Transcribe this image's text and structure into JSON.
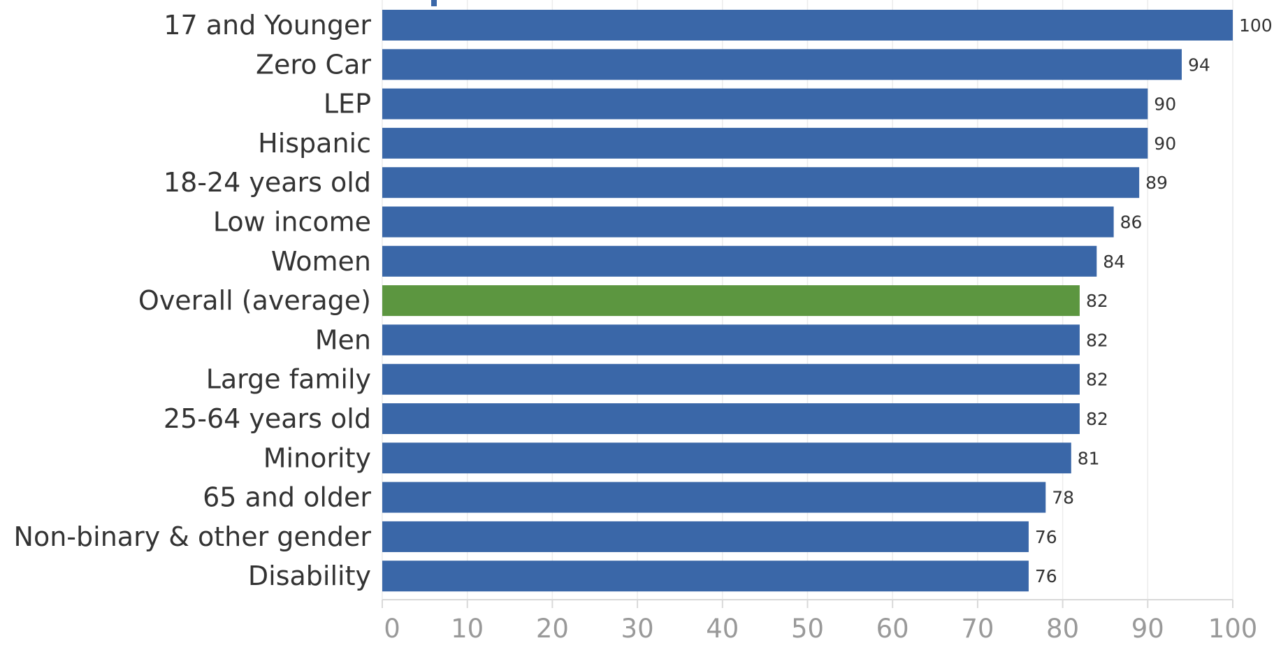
{
  "chart_data": {
    "type": "bar",
    "orientation": "horizontal",
    "categories": [
      "17 and Younger",
      "Zero Car",
      "LEP",
      "Hispanic",
      "18-24 years old",
      "Low income",
      "Women",
      "Overall (average)",
      "Men",
      "Large family",
      "25-64 years old",
      "Minority",
      "65 and older",
      "Non-binary & other gender",
      "Disability"
    ],
    "values": [
      100,
      94,
      90,
      90,
      89,
      86,
      84,
      82,
      82,
      82,
      82,
      81,
      78,
      76,
      76
    ],
    "value_labels": [
      "100",
      "94",
      "90",
      "90",
      "89",
      "86",
      "84",
      "82",
      "82",
      "82",
      "82",
      "81",
      "78",
      "76",
      "76"
    ],
    "highlight_category": "Overall (average)",
    "xlim": [
      0,
      100
    ],
    "xticks": [
      0,
      10,
      20,
      30,
      40,
      50,
      60,
      70,
      80,
      90,
      100
    ],
    "xtick_labels": [
      "0",
      "10",
      "20",
      "30",
      "40",
      "50",
      "60",
      "70",
      "80",
      "90",
      "100"
    ],
    "grid": true,
    "colors": {
      "bar": "#3a67a8",
      "highlight": "#5c9640",
      "accent_mark": "#3a67a8"
    }
  }
}
